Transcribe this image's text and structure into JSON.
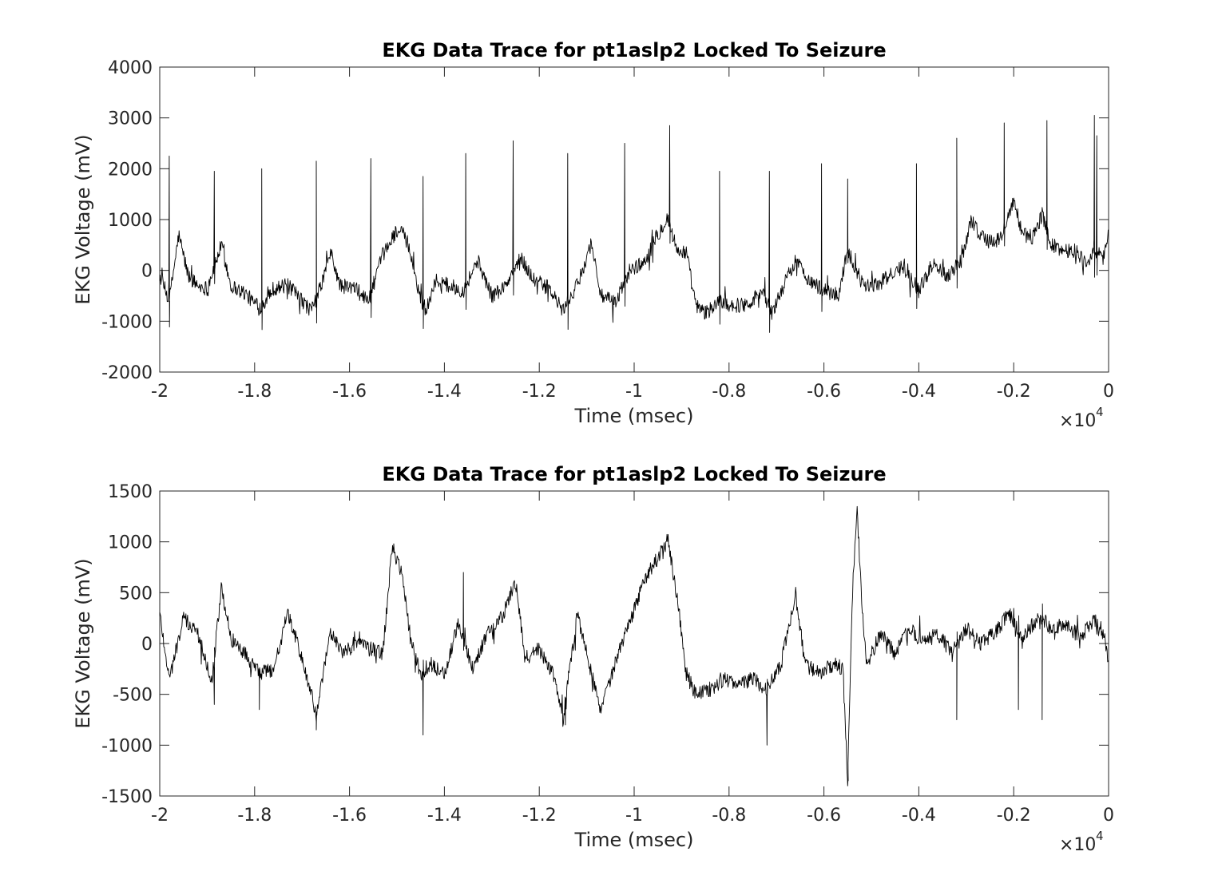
{
  "chart_data": [
    {
      "type": "line",
      "title": "EKG Data Trace for pt1aslp2 Locked To Seizure",
      "xlabel": "Time (msec)",
      "ylabel": "EKG Voltage (mV)",
      "x_exponent_label": "×10",
      "x_exponent_power": "4",
      "xlim": [
        -20000,
        0
      ],
      "ylim": [
        -2000,
        4000
      ],
      "x_ticks": [
        -20000,
        -18000,
        -16000,
        -14000,
        -12000,
        -10000,
        -8000,
        -6000,
        -4000,
        -2000,
        0
      ],
      "x_tick_labels": [
        "-2",
        "-1.8",
        "-1.6",
        "-1.4",
        "-1.2",
        "-1",
        "-0.8",
        "-0.6",
        "-0.4",
        "-0.2",
        "0"
      ],
      "y_ticks": [
        -2000,
        -1000,
        0,
        1000,
        2000,
        3000,
        4000
      ],
      "y_tick_labels": [
        "-2000",
        "-1000",
        "0",
        "1000",
        "2000",
        "3000",
        "4000"
      ],
      "color": "#000000",
      "baseline": [
        [
          -20000,
          -100
        ],
        [
          -19800,
          -600
        ],
        [
          -19600,
          700
        ],
        [
          -19400,
          -100
        ],
        [
          -19200,
          -300
        ],
        [
          -19000,
          -350
        ],
        [
          -18700,
          500
        ],
        [
          -18500,
          -300
        ],
        [
          -18200,
          -450
        ],
        [
          -17900,
          -750
        ],
        [
          -17600,
          -350
        ],
        [
          -17300,
          -300
        ],
        [
          -17000,
          -600
        ],
        [
          -16800,
          -800
        ],
        [
          -16600,
          -300
        ],
        [
          -16400,
          350
        ],
        [
          -16200,
          -300
        ],
        [
          -15900,
          -350
        ],
        [
          -15600,
          -600
        ],
        [
          -15300,
          300
        ],
        [
          -15000,
          800
        ],
        [
          -14800,
          650
        ],
        [
          -14600,
          -200
        ],
        [
          -14400,
          -850
        ],
        [
          -14200,
          -200
        ],
        [
          -13900,
          -300
        ],
        [
          -13600,
          -400
        ],
        [
          -13300,
          200
        ],
        [
          -13000,
          -500
        ],
        [
          -12700,
          -300
        ],
        [
          -12400,
          250
        ],
        [
          -12100,
          -200
        ],
        [
          -11800,
          -350
        ],
        [
          -11500,
          -800
        ],
        [
          -11200,
          -300
        ],
        [
          -10900,
          550
        ],
        [
          -10700,
          -500
        ],
        [
          -10400,
          -650
        ],
        [
          -10100,
          0
        ],
        [
          -9800,
          150
        ],
        [
          -9500,
          700
        ],
        [
          -9300,
          1050
        ],
        [
          -9100,
          400
        ],
        [
          -8900,
          350
        ],
        [
          -8700,
          -700
        ],
        [
          -8500,
          -850
        ],
        [
          -8200,
          -600
        ],
        [
          -7900,
          -700
        ],
        [
          -7600,
          -650
        ],
        [
          -7300,
          -400
        ],
        [
          -7100,
          -850
        ],
        [
          -6900,
          -400
        ],
        [
          -6600,
          200
        ],
        [
          -6300,
          -200
        ],
        [
          -6000,
          -400
        ],
        [
          -5700,
          -500
        ],
        [
          -5500,
          400
        ],
        [
          -5200,
          -250
        ],
        [
          -4900,
          -300
        ],
        [
          -4600,
          -100
        ],
        [
          -4300,
          100
        ],
        [
          -4000,
          -400
        ],
        [
          -3700,
          150
        ],
        [
          -3400,
          -100
        ],
        [
          -3100,
          200
        ],
        [
          -2900,
          1000
        ],
        [
          -2700,
          700
        ],
        [
          -2500,
          550
        ],
        [
          -2300,
          600
        ],
        [
          -2000,
          1350
        ],
        [
          -1800,
          700
        ],
        [
          -1600,
          650
        ],
        [
          -1400,
          1100
        ],
        [
          -1200,
          500
        ],
        [
          -1000,
          400
        ],
        [
          -700,
          400
        ],
        [
          -500,
          150
        ],
        [
          -300,
          350
        ],
        [
          -100,
          250
        ],
        [
          0,
          800
        ]
      ],
      "spikes": [
        [
          -19800,
          2250
        ],
        [
          -18850,
          1950
        ],
        [
          -17850,
          2000
        ],
        [
          -16700,
          2150
        ],
        [
          -15550,
          2200
        ],
        [
          -14450,
          1850
        ],
        [
          -13550,
          2300
        ],
        [
          -12550,
          2550
        ],
        [
          -11400,
          2300
        ],
        [
          -10200,
          2500
        ],
        [
          -9250,
          2850
        ],
        [
          -8200,
          1950
        ],
        [
          -7150,
          1950
        ],
        [
          -6050,
          2100
        ],
        [
          -5500,
          1800
        ],
        [
          -4050,
          2100
        ],
        [
          -3200,
          2600
        ],
        [
          -2200,
          2900
        ],
        [
          -1300,
          2950
        ],
        [
          -300,
          3050
        ],
        [
          -250,
          2650
        ]
      ]
    },
    {
      "type": "line",
      "title": "EKG Data Trace for pt1aslp2 Locked To Seizure",
      "xlabel": "Time (msec)",
      "ylabel": "EKG Voltage (mV)",
      "x_exponent_label": "×10",
      "x_exponent_power": "4",
      "xlim": [
        -20000,
        0
      ],
      "ylim": [
        -1500,
        1500
      ],
      "x_ticks": [
        -20000,
        -18000,
        -16000,
        -14000,
        -12000,
        -10000,
        -8000,
        -6000,
        -4000,
        -2000,
        0
      ],
      "x_tick_labels": [
        "-2",
        "-1.8",
        "-1.6",
        "-1.4",
        "-1.2",
        "-1",
        "-0.8",
        "-0.6",
        "-0.4",
        "-0.2",
        "0"
      ],
      "y_ticks": [
        -1500,
        -1000,
        -500,
        0,
        500,
        1000,
        1500
      ],
      "y_tick_labels": [
        "-1500",
        "-1000",
        "-500",
        "0",
        "500",
        "1000",
        "1500"
      ],
      "color": "#000000",
      "baseline": [
        [
          -20000,
          300
        ],
        [
          -19800,
          -350
        ],
        [
          -19500,
          250
        ],
        [
          -19200,
          100
        ],
        [
          -18900,
          -350
        ],
        [
          -18700,
          550
        ],
        [
          -18500,
          50
        ],
        [
          -18200,
          -100
        ],
        [
          -17900,
          -300
        ],
        [
          -17600,
          -250
        ],
        [
          -17300,
          300
        ],
        [
          -17000,
          -150
        ],
        [
          -16700,
          -700
        ],
        [
          -16400,
          100
        ],
        [
          -16100,
          -100
        ],
        [
          -15800,
          50
        ],
        [
          -15600,
          -50
        ],
        [
          -15300,
          -100
        ],
        [
          -15100,
          950
        ],
        [
          -14900,
          700
        ],
        [
          -14700,
          0
        ],
        [
          -14500,
          -300
        ],
        [
          -14300,
          -200
        ],
        [
          -14000,
          -300
        ],
        [
          -13700,
          200
        ],
        [
          -13400,
          -250
        ],
        [
          -13100,
          100
        ],
        [
          -12800,
          250
        ],
        [
          -12500,
          600
        ],
        [
          -12300,
          -150
        ],
        [
          -12000,
          -50
        ],
        [
          -11700,
          -300
        ],
        [
          -11500,
          -750
        ],
        [
          -11200,
          300
        ],
        [
          -11000,
          -100
        ],
        [
          -10700,
          -650
        ],
        [
          -10400,
          -200
        ],
        [
          -10100,
          200
        ],
        [
          -9800,
          600
        ],
        [
          -9500,
          850
        ],
        [
          -9300,
          1050
        ],
        [
          -9100,
          450
        ],
        [
          -8900,
          -300
        ],
        [
          -8700,
          -500
        ],
        [
          -8400,
          -450
        ],
        [
          -8100,
          -350
        ],
        [
          -7800,
          -400
        ],
        [
          -7500,
          -350
        ],
        [
          -7200,
          -450
        ],
        [
          -6900,
          -200
        ],
        [
          -6600,
          500
        ],
        [
          -6400,
          -200
        ],
        [
          -6100,
          -300
        ],
        [
          -5800,
          -200
        ],
        [
          -5600,
          -250
        ],
        [
          -5500,
          -1350
        ],
        [
          -5400,
          500
        ],
        [
          -5300,
          1300
        ],
        [
          -5200,
          400
        ],
        [
          -5100,
          -200
        ],
        [
          -4800,
          100
        ],
        [
          -4500,
          -100
        ],
        [
          -4200,
          150
        ],
        [
          -3900,
          0
        ],
        [
          -3600,
          100
        ],
        [
          -3300,
          -100
        ],
        [
          -3000,
          150
        ],
        [
          -2700,
          0
        ],
        [
          -2400,
          100
        ],
        [
          -2100,
          300
        ],
        [
          -1800,
          50
        ],
        [
          -1500,
          250
        ],
        [
          -1200,
          150
        ],
        [
          -900,
          200
        ],
        [
          -600,
          50
        ],
        [
          -300,
          250
        ],
        [
          -100,
          100
        ],
        [
          0,
          -250
        ]
      ],
      "spikes": [
        [
          -18850,
          -600
        ],
        [
          -17900,
          -650
        ],
        [
          -16700,
          -850
        ],
        [
          -14450,
          -900
        ],
        [
          -13600,
          700
        ],
        [
          -11450,
          -800
        ],
        [
          -7200,
          -1000
        ],
        [
          -5500,
          -1400
        ],
        [
          -3200,
          -750
        ],
        [
          -1900,
          -650
        ],
        [
          -1400,
          -750
        ]
      ]
    }
  ]
}
